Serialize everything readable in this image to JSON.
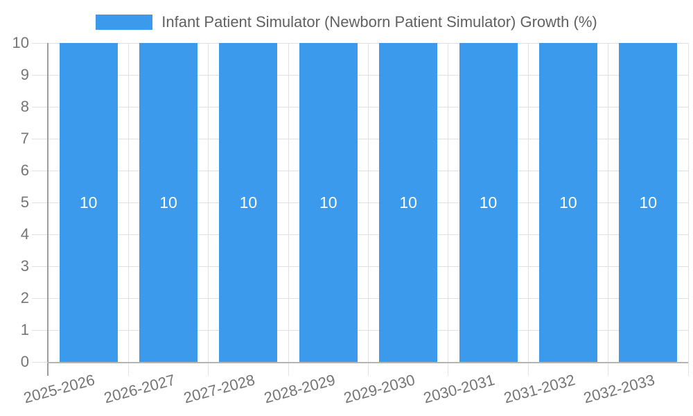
{
  "legend": {
    "label": "Infant Patient Simulator (Newborn Patient Simulator) Growth (%)"
  },
  "chart_data": {
    "type": "bar",
    "title": "",
    "xlabel": "",
    "ylabel": "",
    "categories": [
      "2025-2026",
      "2026-2027",
      "2027-2028",
      "2028-2029",
      "2029-2030",
      "2030-2031",
      "2031-2032",
      "2032-2033"
    ],
    "series": [
      {
        "name": "Infant Patient Simulator (Newborn Patient Simulator) Growth (%)",
        "values": [
          10,
          10,
          10,
          10,
          10,
          10,
          10,
          10
        ]
      }
    ],
    "bar_labels": [
      "10",
      "10",
      "10",
      "10",
      "10",
      "10",
      "10",
      "10"
    ],
    "ylim": [
      0,
      10
    ],
    "yticks": [
      0,
      1,
      2,
      3,
      4,
      5,
      6,
      7,
      8,
      9,
      10
    ],
    "grid": true,
    "legend_position": "top",
    "colors": {
      "bar": "#3B9AEC",
      "bar_label_text": "#ffffff",
      "axis_label": "#757575",
      "legend_text": "#616161",
      "grid_line": "#e0e0e0",
      "y_axis_line": "#9d9d9d",
      "x_axis_line": "#b5b5b5"
    }
  }
}
